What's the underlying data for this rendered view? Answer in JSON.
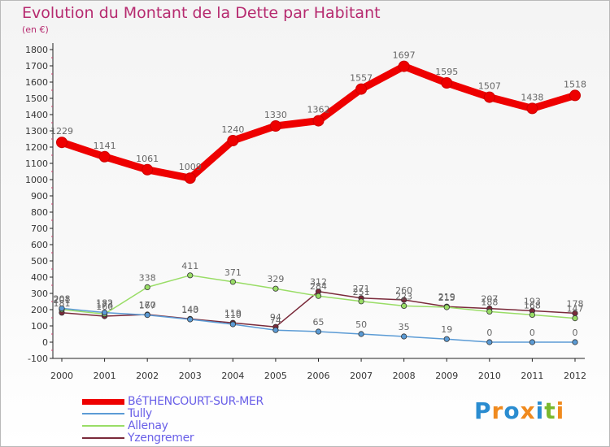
{
  "header": {
    "title": "Evolution du Montant de la Dette par Habitant",
    "subtitle": "(en €)"
  },
  "chart_data": {
    "type": "line",
    "title": "Evolution du Montant de la Dette par Habitant",
    "ylabel": "(en €)",
    "xlabel": "",
    "x": [
      "2000",
      "2001",
      "2002",
      "2003",
      "2004",
      "2005",
      "2006",
      "2007",
      "2008",
      "2009",
      "2010",
      "2011",
      "2012"
    ],
    "ylim": [
      -100,
      1800
    ],
    "yticks": [
      -100,
      0,
      100,
      200,
      300,
      400,
      500,
      600,
      700,
      800,
      900,
      1000,
      1100,
      1200,
      1300,
      1400,
      1500,
      1600,
      1700,
      1800
    ],
    "grid": false,
    "legend_position": "bottom-left",
    "series": [
      {
        "name": "BéTHENCOURT-SUR-MER",
        "color": "#ee0000",
        "values": [
          1229,
          1141,
          1061,
          1009,
          1240,
          1330,
          1362,
          1557,
          1697,
          1595,
          1507,
          1438,
          1518
        ]
      },
      {
        "name": "Tully",
        "color": "#5b9bd5",
        "values": [
          208,
          182,
          167,
          140,
          110,
          74,
          65,
          50,
          35,
          19,
          0,
          0,
          0
        ]
      },
      {
        "name": "Allenay",
        "color": "#99dd66",
        "values": [
          201,
          173,
          338,
          411,
          371,
          329,
          284,
          251,
          223,
          215,
          188,
          168,
          147
        ]
      },
      {
        "name": "Yzengremer",
        "color": "#7a2a3a",
        "values": [
          181,
          160,
          170,
          143,
          119,
          94,
          312,
          271,
          260,
          219,
          207,
          193,
          178
        ]
      }
    ]
  },
  "logo": {
    "letters": [
      "P",
      "r",
      "o",
      "x",
      "i",
      "t",
      "i"
    ],
    "colors": [
      "#2a8cd0",
      "#f08a1e",
      "#2a8cd0",
      "#f08a1e",
      "#2a8cd0",
      "#7ab82e",
      "#f08a1e"
    ]
  }
}
